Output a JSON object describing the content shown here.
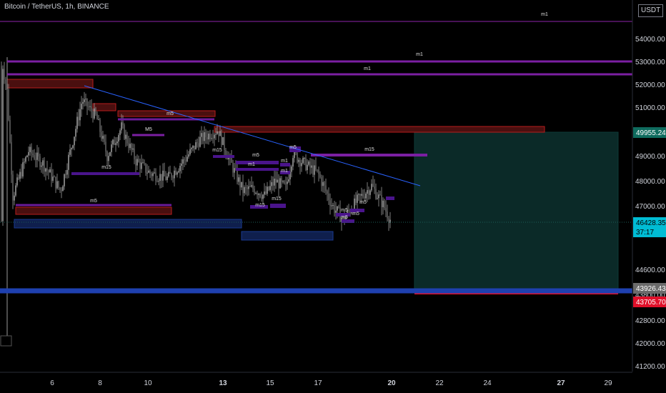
{
  "chart_title": "Bitcoin / TetherUS, 1h, BINANCE",
  "price_unit": "USDT",
  "colors": {
    "background": "#000000",
    "candles": "#9a9a9a",
    "axis_text": "#d1d4dc",
    "purple_level": "#7b1fa2",
    "red_zone": "#b71c1c",
    "blue_zone": "#1a3a8f",
    "blue_level": "#1e40af",
    "trendline": "#2962ff",
    "target_zone": "#0b2a28",
    "stop_zone": "#e0102a",
    "current_price_tag": "#00bcd4",
    "target_tag": "#0f6b5e",
    "stop_tag": "#e0102a",
    "entry_tag": "#6b6b6b"
  },
  "price_axis": {
    "ticks": [
      "54000.00",
      "53000.00",
      "52000.00",
      "51000.00",
      "50000.00",
      "49000.00",
      "48000.00",
      "47000.00",
      "44600.00",
      "43800.00",
      "42800.00",
      "42000.00",
      "41200.00"
    ],
    "tags": [
      {
        "label": "49955.24",
        "role": "target"
      },
      {
        "label": "46428.35",
        "sub": "37:17",
        "role": "current"
      },
      {
        "label": "43926.43",
        "role": "entry"
      },
      {
        "label": "43705.70",
        "role": "stop"
      }
    ]
  },
  "time_axis": {
    "ticks": [
      "6",
      "8",
      "10",
      "13",
      "15",
      "17",
      "20",
      "22",
      "24",
      "27",
      "29"
    ],
    "bold": [
      "13",
      "20",
      "27"
    ]
  },
  "chart_data": {
    "type": "candlestick",
    "x_labels": [
      "6",
      "8",
      "10",
      "13",
      "15",
      "17",
      "20",
      "22",
      "24",
      "27",
      "29"
    ],
    "y_ticks": [
      54000,
      53000,
      52000,
      51000,
      50000,
      49000,
      48000,
      47000,
      44600,
      43800,
      42800,
      42000,
      41200
    ],
    "last_price": 46428.35,
    "countdown": "37:17",
    "horizontal_levels": [
      {
        "label": "m1",
        "kind": "purple-line"
      },
      {
        "label": "m1",
        "kind": "purple-line"
      },
      {
        "label": "m1",
        "kind": "purple-line"
      },
      {
        "label": "m15",
        "kind": "purple-line"
      },
      {
        "label": "m5",
        "kind": "red-zone"
      },
      {
        "label": "M5",
        "kind": "purple-line"
      },
      {
        "label": "m15",
        "kind": "purple-line"
      },
      {
        "label": "m5",
        "kind": "red-zone"
      },
      {
        "label": "m15",
        "kind": "purple-line"
      },
      {
        "label": "m5",
        "kind": "purple-line"
      },
      {
        "label": "m1",
        "kind": "purple-line"
      },
      {
        "label": "m1",
        "kind": "purple-zone"
      },
      {
        "label": "m1",
        "kind": "purple-zone"
      },
      {
        "label": "m5",
        "kind": "purple-zone"
      },
      {
        "label": "m15",
        "kind": "purple-zone"
      },
      {
        "label": "m15",
        "kind": "purple-zone"
      },
      {
        "label": "m5",
        "kind": "purple-zone"
      },
      {
        "label": "m5",
        "kind": "purple-zone"
      },
      {
        "label": "m5",
        "kind": "purple-zone"
      },
      {
        "label": "m5",
        "kind": "purple-zone"
      }
    ],
    "trade_setup": {
      "target": 49955.24,
      "entry": 43926.43,
      "stop": 43705.7
    }
  }
}
